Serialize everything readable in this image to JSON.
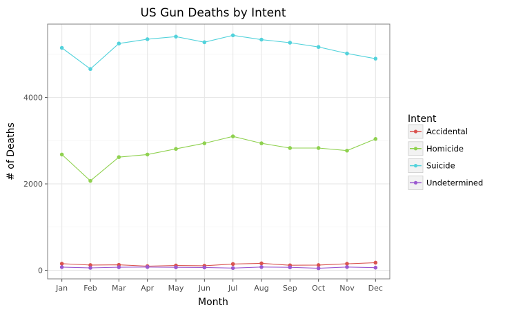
{
  "chart_data": {
    "type": "line",
    "title": "US Gun Deaths by Intent",
    "xlabel": "Month",
    "ylabel": "# of Deaths",
    "categories": [
      "Jan",
      "Feb",
      "Mar",
      "Apr",
      "May",
      "Jun",
      "Jul",
      "Aug",
      "Sep",
      "Oct",
      "Nov",
      "Dec"
    ],
    "yticks": [
      0,
      2000,
      4000
    ],
    "ylim": [
      -200,
      5700
    ],
    "grid": true,
    "legend_title": "Intent",
    "legend_position": "right",
    "series": [
      {
        "name": "Accidental",
        "color": "#d9534f",
        "values": [
          152,
          120,
          125,
          95,
          110,
          105,
          145,
          160,
          115,
          120,
          150,
          175
        ]
      },
      {
        "name": "Homicide",
        "color": "#8fd14f",
        "values": [
          2680,
          2070,
          2620,
          2680,
          2810,
          2940,
          3100,
          2940,
          2830,
          2830,
          2770,
          3040
        ]
      },
      {
        "name": "Suicide",
        "color": "#52d2db",
        "values": [
          5150,
          4660,
          5250,
          5350,
          5410,
          5280,
          5440,
          5340,
          5270,
          5170,
          5020,
          4900
        ]
      },
      {
        "name": "Undetermined",
        "color": "#9b59d0",
        "values": [
          72,
          55,
          70,
          75,
          68,
          65,
          50,
          75,
          68,
          45,
          75,
          60
        ]
      }
    ]
  }
}
